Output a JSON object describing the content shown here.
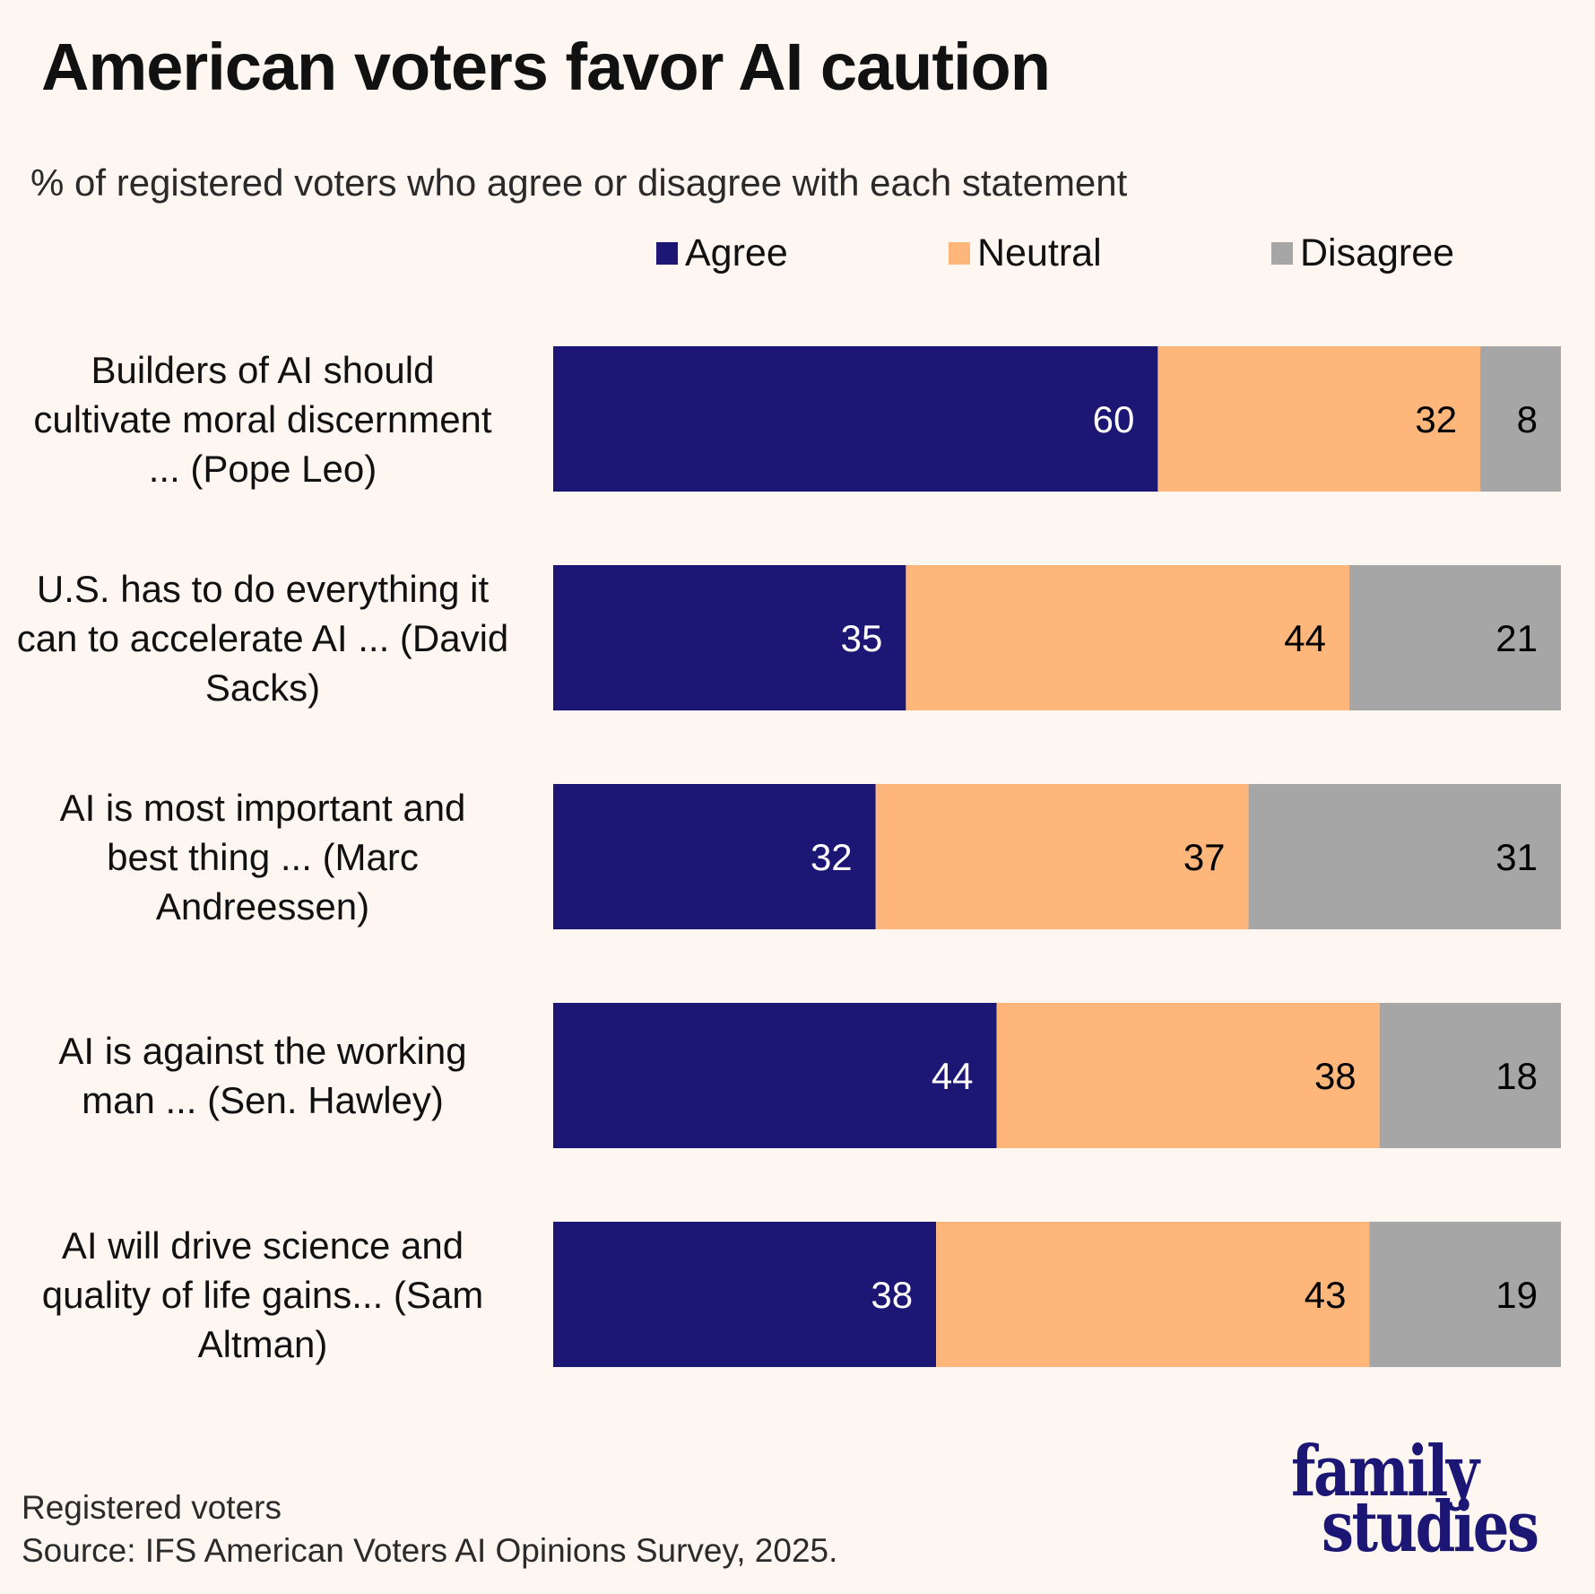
{
  "title": "American voters favor AI caution",
  "subtitle": "% of registered voters who agree or disagree with each statement",
  "legend": [
    {
      "label": "Agree",
      "color": "#1c1675"
    },
    {
      "label": "Neutral",
      "color": "#ffb67b"
    },
    {
      "label": "Disagree",
      "color": "#a6a6a6"
    }
  ],
  "footer": {
    "note": "Registered voters",
    "source": "Source: IFS American Voters AI Opinions Survey, 2025."
  },
  "logo": {
    "line1": "family",
    "line2": "studies",
    "color": "#1c1675"
  },
  "chart_data": {
    "type": "bar",
    "orientation": "horizontal",
    "stacked": true,
    "title": "American voters favor AI caution",
    "subtitle": "% of registered voters who agree or disagree with each statement",
    "xlabel": "",
    "ylabel": "",
    "xlim": [
      0,
      100
    ],
    "grid": false,
    "legend_position": "top",
    "categories": [
      "Builders of AI should cultivate moral discernment ... (Pope Leo)",
      "U.S. has to do everything it can to accelerate AI ... (David Sacks)",
      "AI is most important and best thing ... (Marc Andreessen)",
      "AI is against the working man ... (Sen. Hawley)",
      "AI will drive science and quality of life gains... (Sam Altman)"
    ],
    "category_lines": [
      [
        "Builders of AI should",
        "cultivate moral discernment",
        "... (Pope Leo)"
      ],
      [
        "U.S. has to do everything it",
        "can to accelerate AI ... (David",
        "Sacks)"
      ],
      [
        "AI is most important and",
        "best thing ... (Marc",
        "Andreessen)"
      ],
      [
        "AI is against the working",
        "man ... (Sen. Hawley)"
      ],
      [
        "AI will drive science and",
        "quality of life gains... (Sam",
        "Altman)"
      ]
    ],
    "series": [
      {
        "name": "Agree",
        "color": "#1c1675",
        "label_color": "#ffffff",
        "values": [
          60,
          35,
          32,
          44,
          38
        ]
      },
      {
        "name": "Neutral",
        "color": "#ffb67b",
        "label_color": "#000000",
        "values": [
          32,
          44,
          37,
          38,
          43
        ]
      },
      {
        "name": "Disagree",
        "color": "#a6a6a6",
        "label_color": "#000000",
        "values": [
          8,
          21,
          31,
          18,
          19
        ]
      }
    ]
  }
}
